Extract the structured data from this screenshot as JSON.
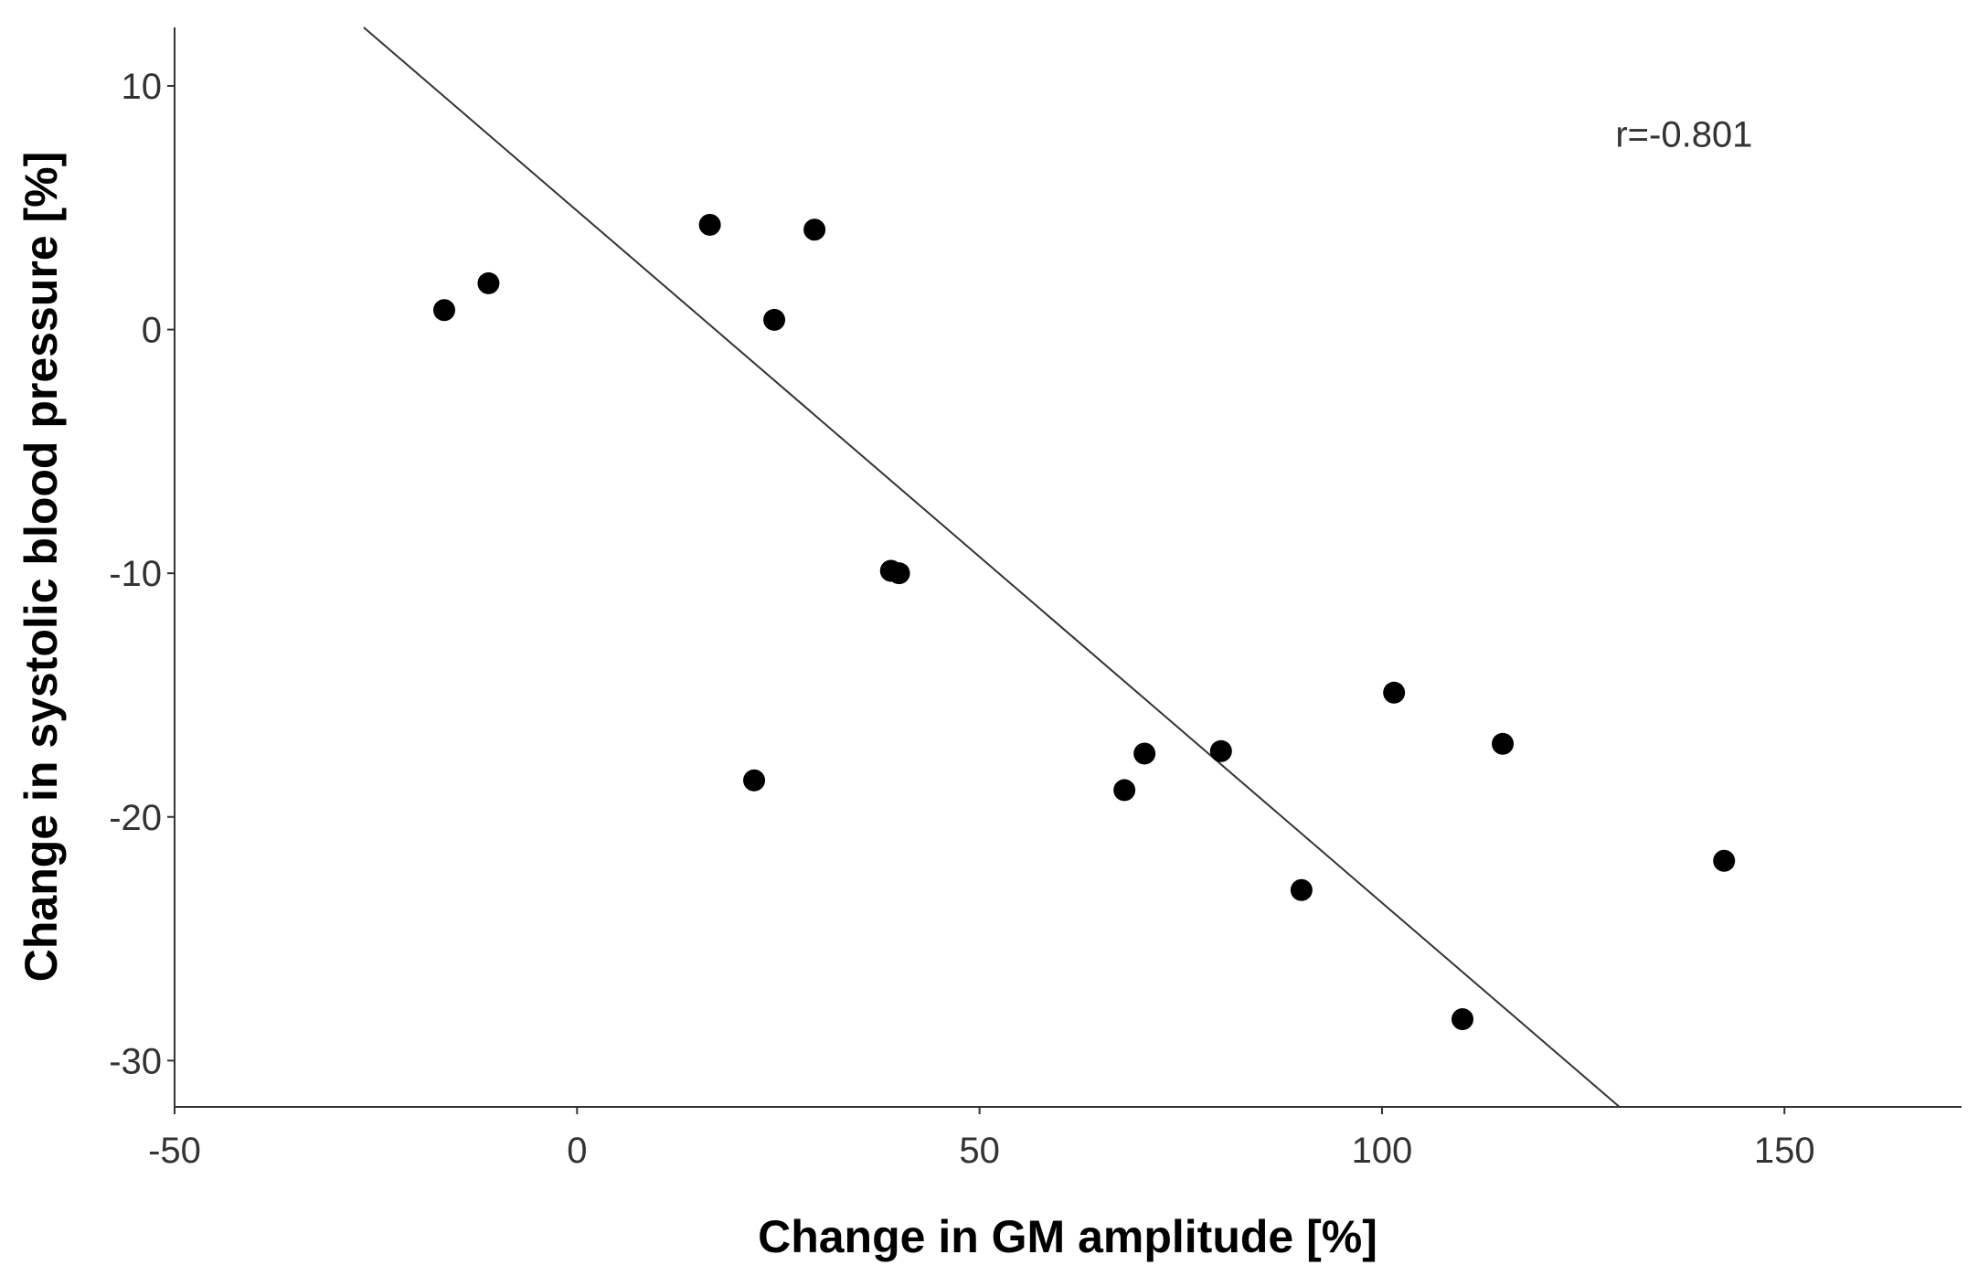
{
  "chart_data": {
    "type": "scatter",
    "title": "",
    "xlabel": "Change in GM amplitude [%]",
    "ylabel": "Change in systolic blood pressure [%]",
    "xlim": [
      -50,
      172
    ],
    "ylim": [
      -31.9,
      12.4
    ],
    "xticks": [
      -50,
      0,
      50,
      100,
      150
    ],
    "yticks": [
      10,
      0,
      -10,
      -20,
      -30
    ],
    "grid": false,
    "legend": "none",
    "point_color": "#000000",
    "line_color": "#333333",
    "series": [
      {
        "points": [
          {
            "x": -16.5,
            "y": 0.8
          },
          {
            "x": -11,
            "y": 1.9
          },
          {
            "x": 16.5,
            "y": 4.3
          },
          {
            "x": 29.5,
            "y": 4.1
          },
          {
            "x": 24.5,
            "y": 0.4
          },
          {
            "x": 39,
            "y": -9.9
          },
          {
            "x": 40,
            "y": -10
          },
          {
            "x": 22,
            "y": -18.5
          },
          {
            "x": 68,
            "y": -18.9
          },
          {
            "x": 70.5,
            "y": -17.4
          },
          {
            "x": 80,
            "y": -17.3
          },
          {
            "x": 101.5,
            "y": -14.9
          },
          {
            "x": 115,
            "y": -17
          },
          {
            "x": 90,
            "y": -23
          },
          {
            "x": 110,
            "y": -28.3
          },
          {
            "x": 142.5,
            "y": -21.8
          }
        ]
      }
    ],
    "fit_line": {
      "x": [
        -26.5,
        129.5
      ],
      "y": [
        12.4,
        -31.9
      ]
    },
    "annotations": [
      {
        "text": "r=-0.801",
        "x": 129,
        "y": 7.5
      }
    ]
  }
}
